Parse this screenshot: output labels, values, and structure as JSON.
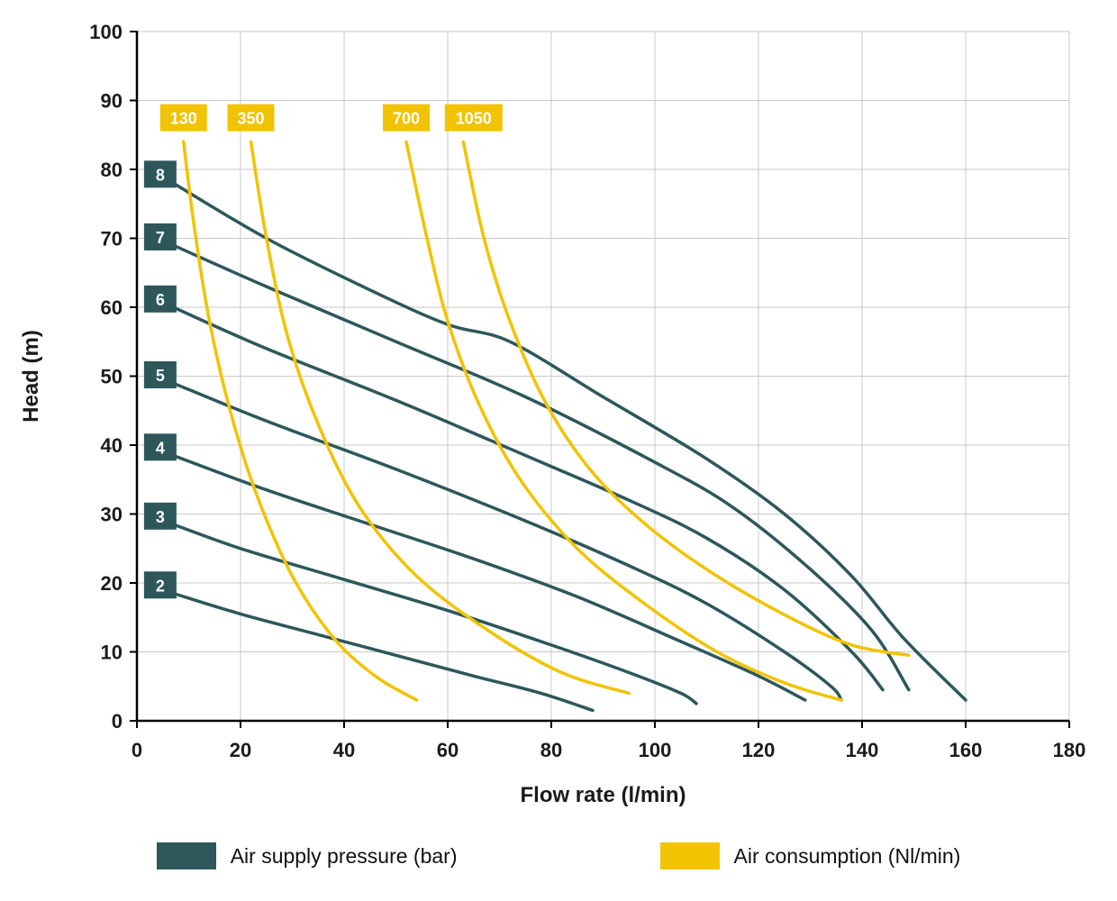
{
  "chart_data": {
    "type": "line",
    "title": "",
    "xlabel": "Flow rate (l/min)",
    "ylabel": "Head (m)",
    "xlim": [
      0,
      180
    ],
    "ylim": [
      0,
      100
    ],
    "xticks": [
      0,
      20,
      40,
      60,
      80,
      100,
      120,
      140,
      160,
      180
    ],
    "yticks": [
      0,
      10,
      20,
      30,
      40,
      50,
      60,
      70,
      80,
      90,
      100
    ],
    "grid": true,
    "grid_color": "#c8c8c8",
    "axis_color": "#000000",
    "series": [
      {
        "name": "2",
        "group": "pressure",
        "unit": "bar",
        "color": "#2d575b",
        "label_pos": [
          4.5,
          19.7
        ],
        "points": [
          [
            7,
            18.5
          ],
          [
            20,
            15.5
          ],
          [
            35,
            12.5
          ],
          [
            50,
            9.5
          ],
          [
            65,
            6.5
          ],
          [
            78,
            4
          ],
          [
            88,
            1.5
          ]
        ]
      },
      {
        "name": "3",
        "group": "pressure",
        "unit": "bar",
        "color": "#2d575b",
        "label_pos": [
          4.5,
          29.7
        ],
        "points": [
          [
            7,
            28.5
          ],
          [
            20,
            25
          ],
          [
            40,
            20.5
          ],
          [
            60,
            16
          ],
          [
            80,
            11
          ],
          [
            95,
            7
          ],
          [
            105,
            4
          ],
          [
            108,
            2.5
          ]
        ]
      },
      {
        "name": "4",
        "group": "pressure",
        "unit": "bar",
        "color": "#2d575b",
        "label_pos": [
          4.5,
          39.7
        ],
        "points": [
          [
            7,
            38.5
          ],
          [
            25,
            33.5
          ],
          [
            45,
            28.5
          ],
          [
            65,
            23.5
          ],
          [
            85,
            18
          ],
          [
            105,
            11.5
          ],
          [
            120,
            6.5
          ],
          [
            129,
            3
          ]
        ]
      },
      {
        "name": "5",
        "group": "pressure",
        "unit": "bar",
        "color": "#2d575b",
        "label_pos": [
          4.5,
          50.2
        ],
        "points": [
          [
            7,
            49
          ],
          [
            25,
            43.5
          ],
          [
            50,
            36.5
          ],
          [
            75,
            29
          ],
          [
            95,
            22.5
          ],
          [
            110,
            17
          ],
          [
            125,
            10
          ],
          [
            134,
            5
          ],
          [
            136,
            3
          ]
        ]
      },
      {
        "name": "6",
        "group": "pressure",
        "unit": "bar",
        "color": "#2d575b",
        "label_pos": [
          4.5,
          61.2
        ],
        "points": [
          [
            7,
            60
          ],
          [
            25,
            54
          ],
          [
            50,
            46.5
          ],
          [
            75,
            38.5
          ],
          [
            95,
            32
          ],
          [
            110,
            26.5
          ],
          [
            125,
            19
          ],
          [
            138,
            10
          ],
          [
            144,
            4.5
          ]
        ]
      },
      {
        "name": "7",
        "group": "pressure",
        "unit": "bar",
        "color": "#2d575b",
        "label_pos": [
          4.5,
          70.2
        ],
        "points": [
          [
            7,
            69
          ],
          [
            25,
            63
          ],
          [
            50,
            55
          ],
          [
            75,
            47
          ],
          [
            100,
            37.5
          ],
          [
            115,
            31
          ],
          [
            130,
            22
          ],
          [
            142,
            13
          ],
          [
            149,
            4.5
          ]
        ]
      },
      {
        "name": "8",
        "group": "pressure",
        "unit": "bar",
        "color": "#2d575b",
        "label_pos": [
          4.5,
          79.3
        ],
        "points": [
          [
            7,
            78
          ],
          [
            25,
            70
          ],
          [
            45,
            62.5
          ],
          [
            60,
            57.5
          ],
          [
            72,
            55
          ],
          [
            90,
            47
          ],
          [
            110,
            38
          ],
          [
            125,
            30
          ],
          [
            138,
            21
          ],
          [
            148,
            12
          ],
          [
            160,
            3
          ]
        ]
      },
      {
        "name": "130",
        "group": "consumption",
        "unit": "Nl/min",
        "color": "#f2c300",
        "label_pos": [
          9,
          87.5
        ],
        "points": [
          [
            9,
            84
          ],
          [
            11,
            72
          ],
          [
            14,
            58
          ],
          [
            18,
            45
          ],
          [
            23,
            33
          ],
          [
            30,
            21
          ],
          [
            38,
            12
          ],
          [
            46,
            6.5
          ],
          [
            54,
            3
          ]
        ]
      },
      {
        "name": "350",
        "group": "consumption",
        "unit": "Nl/min",
        "color": "#f2c300",
        "label_pos": [
          22,
          87.5
        ],
        "points": [
          [
            22,
            84
          ],
          [
            25,
            70
          ],
          [
            29,
            56
          ],
          [
            35,
            43
          ],
          [
            43,
            31
          ],
          [
            54,
            21
          ],
          [
            68,
            13
          ],
          [
            82,
            7
          ],
          [
            95,
            4
          ]
        ]
      },
      {
        "name": "700",
        "group": "consumption",
        "unit": "Nl/min",
        "color": "#f2c300",
        "label_pos": [
          52,
          87.5
        ],
        "points": [
          [
            52,
            84
          ],
          [
            56,
            70
          ],
          [
            60,
            58
          ],
          [
            66,
            46
          ],
          [
            74,
            35
          ],
          [
            85,
            25
          ],
          [
            98,
            17
          ],
          [
            112,
            10
          ],
          [
            125,
            5.5
          ],
          [
            136,
            3
          ]
        ]
      },
      {
        "name": "1050",
        "group": "consumption",
        "unit": "Nl/min",
        "color": "#f2c300",
        "label_pos": [
          65,
          87.5
        ],
        "points": [
          [
            63,
            84
          ],
          [
            67,
            70
          ],
          [
            72,
            58
          ],
          [
            79,
            46
          ],
          [
            88,
            36
          ],
          [
            99,
            28
          ],
          [
            112,
            21
          ],
          [
            126,
            15
          ],
          [
            138,
            11
          ],
          [
            149,
            9.5
          ]
        ]
      }
    ]
  },
  "legend": {
    "items": [
      {
        "label": "Air supply pressure (bar)",
        "color": "#2d575b"
      },
      {
        "label": "Air consumption (Nl/min)",
        "color": "#f2c300"
      }
    ]
  }
}
